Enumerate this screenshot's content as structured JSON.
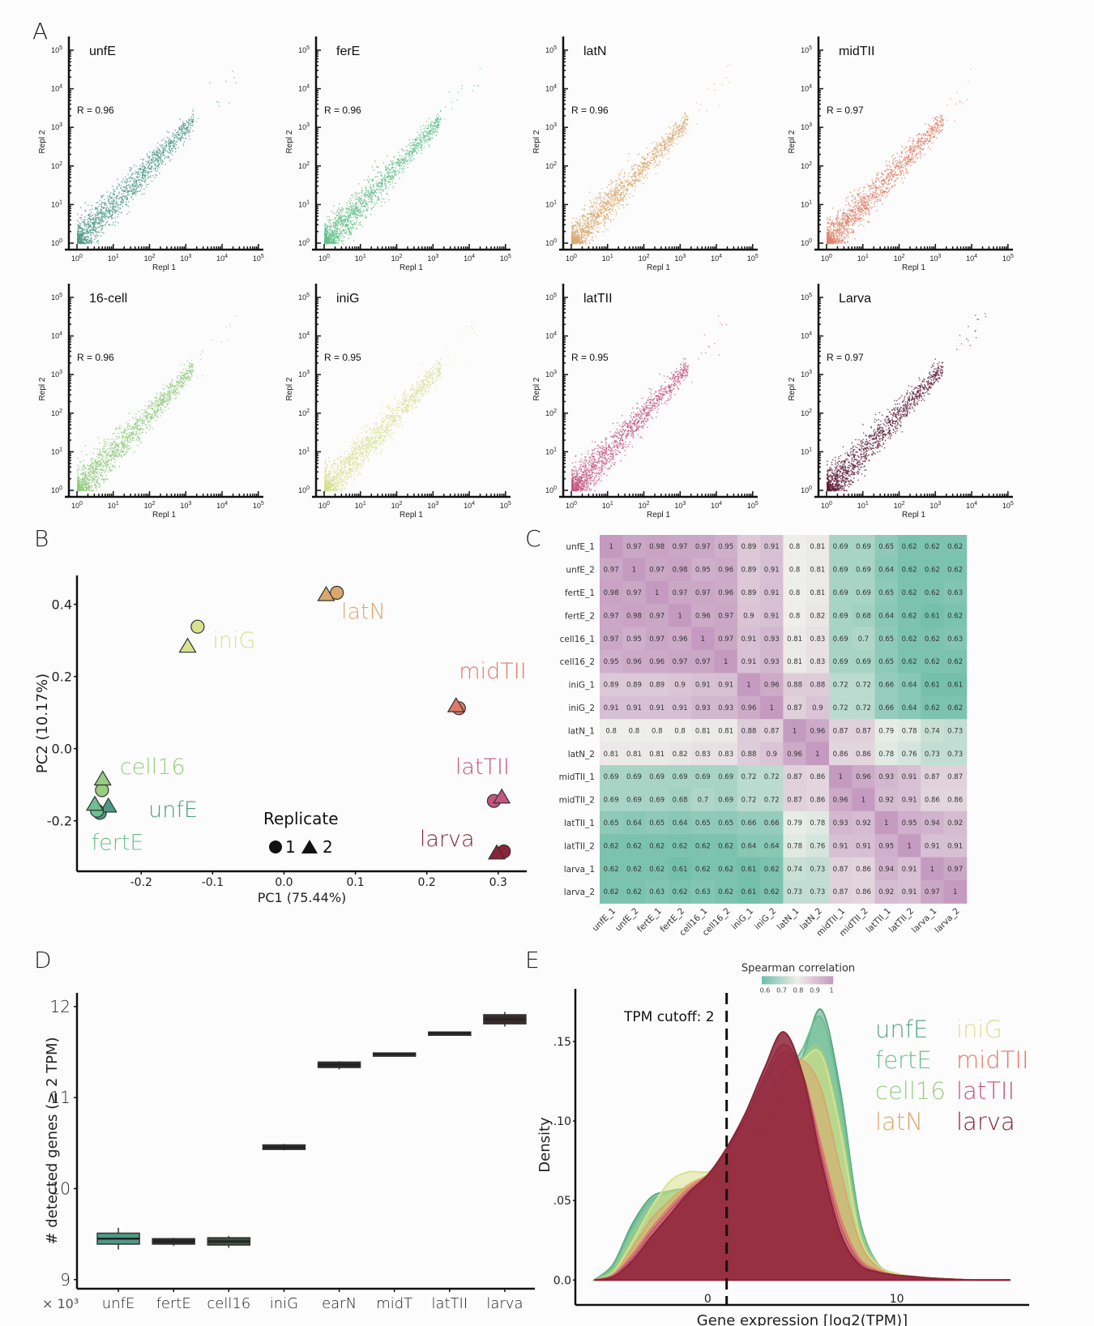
{
  "panels": {
    "A": "A",
    "B": "B",
    "C": "C",
    "D": "D",
    "E": "E"
  },
  "chart_data": [
    {
      "id": "A",
      "type": "scatter",
      "xlabel": "Repl 1",
      "ylabel": "Repl 2",
      "scale": "log10",
      "xlim": [
        1,
        100000
      ],
      "ylim": [
        1,
        100000
      ],
      "tick_labels": [
        "10^0",
        "10^1",
        "10^2",
        "10^3",
        "10^4",
        "10^5"
      ],
      "subplots": [
        {
          "name": "unfE",
          "r_label": "R = 0.96",
          "color": "#4e9a84"
        },
        {
          "name": "ferE",
          "r_label": "R = 0.96",
          "color": "#5fbf8a"
        },
        {
          "name": "latN",
          "r_label": "R = 0.96",
          "color": "#dba76c"
        },
        {
          "name": "midTII",
          "r_label": "R = 0.97",
          "color": "#e08068"
        },
        {
          "name": "16-cell",
          "r_label": "R = 0.96",
          "color": "#8fcb7c"
        },
        {
          "name": "iniG",
          "r_label": "R = 0.95",
          "color": "#d8e08e"
        },
        {
          "name": "latTII",
          "r_label": "R = 0.95",
          "color": "#c4557e"
        },
        {
          "name": "Larva",
          "r_label": "R = 0.97",
          "color": "#5e1d36"
        }
      ]
    },
    {
      "id": "B",
      "type": "scatter",
      "xlabel": "PC1 (75.44%)",
      "ylabel": "PC2 (10.17%)",
      "xlim": [
        -0.29,
        0.34
      ],
      "ylim": [
        -0.34,
        0.48
      ],
      "xticks": [
        -0.2,
        -0.1,
        0.0,
        0.1,
        0.2,
        0.3
      ],
      "xtick_labels": [
        "-0.2",
        "-0.1",
        "0.0",
        "0.1",
        "0.2",
        "0.3"
      ],
      "yticks": [
        -0.2,
        0.0,
        0.2,
        0.4
      ],
      "ytick_labels": [
        "-0.2",
        "0.0",
        "0.2",
        "0.4"
      ],
      "legend": {
        "title": "Replicate",
        "entries": [
          {
            "shape": "circle",
            "label": "1"
          },
          {
            "shape": "triangle",
            "label": "2"
          }
        ],
        "placement": "bottom-center"
      },
      "series": [
        {
          "name": "unfE",
          "color": "#4e9a84",
          "points": [
            {
              "rep": 1,
              "x": -0.258,
              "y": -0.178
            },
            {
              "rep": 2,
              "x": -0.246,
              "y": -0.16
            }
          ],
          "label_pos": [
            -0.19,
            -0.19
          ]
        },
        {
          "name": "fertE",
          "color": "#6cc08e",
          "points": [
            {
              "rep": 1,
              "x": -0.262,
              "y": -0.172
            },
            {
              "rep": 2,
              "x": -0.265,
              "y": -0.155
            }
          ],
          "label_pos": [
            -0.27,
            -0.28
          ]
        },
        {
          "name": "cell16",
          "color": "#98cc82",
          "points": [
            {
              "rep": 1,
              "x": -0.255,
              "y": -0.115
            },
            {
              "rep": 2,
              "x": -0.254,
              "y": -0.085
            }
          ],
          "label_pos": [
            -0.23,
            -0.07
          ]
        },
        {
          "name": "iniG",
          "color": "#d9e28e",
          "points": [
            {
              "rep": 1,
              "x": -0.121,
              "y": 0.338
            },
            {
              "rep": 2,
              "x": -0.135,
              "y": 0.283
            }
          ],
          "label_pos": [
            -0.1,
            0.28
          ]
        },
        {
          "name": "latN",
          "color": "#dba76c",
          "points": [
            {
              "rep": 1,
              "x": 0.074,
              "y": 0.432
            },
            {
              "rep": 2,
              "x": 0.059,
              "y": 0.426
            }
          ],
          "label_pos": [
            0.08,
            0.36
          ]
        },
        {
          "name": "midTII",
          "color": "#e07a66",
          "points": [
            {
              "rep": 1,
              "x": 0.245,
              "y": 0.112
            },
            {
              "rep": 2,
              "x": 0.241,
              "y": 0.118
            }
          ],
          "label_pos": [
            0.245,
            0.195
          ]
        },
        {
          "name": "latTII",
          "color": "#c4557e",
          "points": [
            {
              "rep": 1,
              "x": 0.294,
              "y": -0.145
            },
            {
              "rep": 2,
              "x": 0.305,
              "y": -0.135
            }
          ],
          "label_pos": [
            0.24,
            -0.07
          ]
        },
        {
          "name": "larva",
          "color": "#8c2438",
          "points": [
            {
              "rep": 1,
              "x": 0.308,
              "y": -0.285
            },
            {
              "rep": 2,
              "x": 0.298,
              "y": -0.29
            }
          ],
          "label_pos": [
            0.19,
            -0.27
          ]
        }
      ]
    },
    {
      "id": "C",
      "type": "heatmap",
      "title": "",
      "legend_title": "Spearman  correlation",
      "legend_ticks": [
        "0.6",
        "0.7",
        "0.8",
        "0.9",
        "1"
      ],
      "color_low": "#6fbea8",
      "color_mid": "#eeeeea",
      "color_high": "#c59ac0",
      "range": [
        0.6,
        1.0
      ],
      "labels": [
        "unfE_1",
        "unfE_2",
        "fertE_1",
        "fertE_2",
        "cell16_1",
        "cell16_2",
        "iniG_1",
        "iniG_2",
        "latN_1",
        "latN_2",
        "midTII_1",
        "midTII_2",
        "latTII_1",
        "latTII_2",
        "larva_1",
        "larva_2"
      ],
      "matrix": [
        [
          1,
          0.97,
          0.98,
          0.97,
          0.97,
          0.95,
          0.89,
          0.91,
          0.8,
          0.81,
          0.69,
          0.69,
          0.65,
          0.62,
          0.62,
          0.62
        ],
        [
          0.97,
          1,
          0.97,
          0.98,
          0.95,
          0.96,
          0.89,
          0.91,
          0.8,
          0.81,
          0.69,
          0.69,
          0.64,
          0.62,
          0.62,
          0.62
        ],
        [
          0.98,
          0.97,
          1,
          0.97,
          0.97,
          0.96,
          0.89,
          0.91,
          0.8,
          0.81,
          0.69,
          0.69,
          0.65,
          0.62,
          0.62,
          0.63
        ],
        [
          0.97,
          0.98,
          0.97,
          1,
          0.96,
          0.97,
          0.9,
          0.91,
          0.8,
          0.82,
          0.69,
          0.68,
          0.64,
          0.62,
          0.61,
          0.62
        ],
        [
          0.97,
          0.95,
          0.97,
          0.96,
          1,
          0.97,
          0.91,
          0.93,
          0.81,
          0.83,
          0.69,
          0.7,
          0.65,
          0.62,
          0.62,
          0.63
        ],
        [
          0.95,
          0.96,
          0.96,
          0.97,
          0.97,
          1,
          0.91,
          0.93,
          0.81,
          0.83,
          0.69,
          0.69,
          0.65,
          0.62,
          0.62,
          0.62
        ],
        [
          0.89,
          0.89,
          0.89,
          0.9,
          0.91,
          0.91,
          1,
          0.96,
          0.88,
          0.88,
          0.72,
          0.72,
          0.66,
          0.64,
          0.61,
          0.61
        ],
        [
          0.91,
          0.91,
          0.91,
          0.91,
          0.93,
          0.93,
          0.96,
          1,
          0.87,
          0.9,
          0.72,
          0.72,
          0.66,
          0.64,
          0.62,
          0.62
        ],
        [
          0.8,
          0.8,
          0.8,
          0.8,
          0.81,
          0.81,
          0.88,
          0.87,
          1,
          0.96,
          0.87,
          0.87,
          0.79,
          0.78,
          0.74,
          0.73
        ],
        [
          0.81,
          0.81,
          0.81,
          0.82,
          0.83,
          0.83,
          0.88,
          0.9,
          0.96,
          1,
          0.86,
          0.86,
          0.78,
          0.76,
          0.73,
          0.73
        ],
        [
          0.69,
          0.69,
          0.69,
          0.69,
          0.69,
          0.69,
          0.72,
          0.72,
          0.87,
          0.86,
          1,
          0.96,
          0.93,
          0.91,
          0.87,
          0.87
        ],
        [
          0.69,
          0.69,
          0.69,
          0.68,
          0.7,
          0.69,
          0.72,
          0.72,
          0.87,
          0.86,
          0.96,
          1,
          0.92,
          0.91,
          0.86,
          0.86
        ],
        [
          0.65,
          0.64,
          0.65,
          0.64,
          0.65,
          0.65,
          0.66,
          0.66,
          0.79,
          0.78,
          0.93,
          0.92,
          1,
          0.95,
          0.94,
          0.92
        ],
        [
          0.62,
          0.62,
          0.62,
          0.62,
          0.62,
          0.62,
          0.64,
          0.64,
          0.78,
          0.76,
          0.91,
          0.91,
          0.95,
          1,
          0.91,
          0.91
        ],
        [
          0.62,
          0.62,
          0.62,
          0.61,
          0.62,
          0.62,
          0.61,
          0.62,
          0.74,
          0.73,
          0.87,
          0.86,
          0.94,
          0.91,
          1,
          0.97
        ],
        [
          0.62,
          0.62,
          0.63,
          0.62,
          0.63,
          0.62,
          0.61,
          0.62,
          0.73,
          0.73,
          0.87,
          0.86,
          0.92,
          0.91,
          0.97,
          1
        ]
      ]
    },
    {
      "id": "D",
      "type": "bar",
      "subtype": "boxplot",
      "ylabel": "# detected genes (≥ 2 TPM)",
      "y_multiplier_label": "× 10³",
      "ylim": [
        8.9,
        12.15
      ],
      "yticks": [
        9,
        10,
        11,
        12
      ],
      "ytick_labels": [
        "9",
        "10",
        "11",
        "12"
      ],
      "categories": [
        "unfE",
        "fertE",
        "cell16",
        "iniG",
        "earN",
        "midT",
        "latTII",
        "larva"
      ],
      "boxes": [
        {
          "median": 9.45,
          "q1": 9.39,
          "q3": 9.51,
          "min": 9.33,
          "max": 9.57,
          "fill": "#4e9a84"
        },
        {
          "median": 9.42,
          "q1": 9.39,
          "q3": 9.45,
          "min": 9.37,
          "max": 9.46,
          "fill": "#2b2b2b"
        },
        {
          "median": 9.42,
          "q1": 9.38,
          "q3": 9.46,
          "min": 9.35,
          "max": 9.48,
          "fill": "#3c4f45"
        },
        {
          "median": 10.45,
          "q1": 10.43,
          "q3": 10.48,
          "min": 10.42,
          "max": 10.49,
          "fill": "#2b2b2b"
        },
        {
          "median": 11.36,
          "q1": 11.33,
          "q3": 11.39,
          "min": 11.31,
          "max": 11.4,
          "fill": "#2b2b2b"
        },
        {
          "median": 11.48,
          "q1": 11.47,
          "q3": 11.49,
          "min": 11.47,
          "max": 11.49,
          "fill": "#2b2b2b"
        },
        {
          "median": 11.71,
          "q1": 11.7,
          "q3": 11.72,
          "min": 11.7,
          "max": 11.72,
          "fill": "#2b2b2b"
        },
        {
          "median": 11.86,
          "q1": 11.81,
          "q3": 11.91,
          "min": 11.78,
          "max": 11.94,
          "fill": "#3a2a2e"
        }
      ]
    },
    {
      "id": "E",
      "type": "area",
      "xlabel": "Gene expression [log2(TPM)]",
      "ylabel": "Density",
      "xlim": [
        -7,
        17
      ],
      "ylim": [
        -0.008,
        0.178
      ],
      "xticks": [
        0,
        10
      ],
      "xtick_labels": [
        "0",
        "10"
      ],
      "yticks": [
        0,
        0.05,
        0.1,
        0.15
      ],
      "ytick_labels": [
        "0.0",
        ".05",
        ".10",
        ".15"
      ],
      "annotation": "TPM cutoff: 2",
      "cutoff_x": 1,
      "x": [
        -6,
        -5,
        -4,
        -3,
        -2,
        -1,
        0,
        1,
        2,
        3,
        4,
        5,
        6,
        7,
        8,
        9,
        10,
        11,
        12,
        14,
        16
      ],
      "series": [
        {
          "name": "unfE",
          "color": "#5aa686",
          "values": [
            0,
            0.01,
            0.035,
            0.052,
            0.056,
            0.058,
            0.062,
            0.07,
            0.08,
            0.095,
            0.12,
            0.14,
            0.17,
            0.12,
            0.04,
            0.01,
            0.004,
            0.002,
            0.001,
            0,
            0
          ]
        },
        {
          "name": "fertE",
          "color": "#6cc08e",
          "values": [
            0,
            0.009,
            0.033,
            0.05,
            0.055,
            0.057,
            0.061,
            0.07,
            0.082,
            0.098,
            0.125,
            0.145,
            0.165,
            0.115,
            0.038,
            0.01,
            0.004,
            0.002,
            0.001,
            0,
            0
          ]
        },
        {
          "name": "cell16",
          "color": "#98cc82",
          "values": [
            0,
            0.007,
            0.028,
            0.046,
            0.054,
            0.058,
            0.062,
            0.072,
            0.085,
            0.1,
            0.125,
            0.14,
            0.145,
            0.1,
            0.035,
            0.01,
            0.004,
            0.002,
            0.001,
            0,
            0
          ]
        },
        {
          "name": "latN",
          "color": "#dba76c",
          "values": [
            0,
            0.004,
            0.02,
            0.038,
            0.05,
            0.06,
            0.066,
            0.075,
            0.09,
            0.11,
            0.13,
            0.138,
            0.12,
            0.07,
            0.025,
            0.008,
            0.003,
            0.002,
            0.001,
            0,
            0
          ]
        },
        {
          "name": "iniG",
          "color": "#d9e28e",
          "values": [
            0,
            0.005,
            0.024,
            0.045,
            0.062,
            0.068,
            0.068,
            0.074,
            0.088,
            0.105,
            0.125,
            0.138,
            0.142,
            0.095,
            0.03,
            0.009,
            0.004,
            0.002,
            0.001,
            0,
            0
          ]
        },
        {
          "name": "midTII",
          "color": "#e07a66",
          "values": [
            0,
            0.003,
            0.016,
            0.032,
            0.046,
            0.058,
            0.066,
            0.08,
            0.1,
            0.125,
            0.143,
            0.13,
            0.085,
            0.04,
            0.014,
            0.006,
            0.003,
            0.002,
            0.001,
            0,
            0
          ]
        },
        {
          "name": "latTII",
          "color": "#c4557e",
          "values": [
            0,
            0.003,
            0.014,
            0.03,
            0.044,
            0.056,
            0.066,
            0.082,
            0.102,
            0.128,
            0.148,
            0.13,
            0.08,
            0.035,
            0.012,
            0.005,
            0.003,
            0.002,
            0.001,
            0,
            0
          ]
        },
        {
          "name": "larva",
          "color": "#8c2438",
          "values": [
            0,
            0.002,
            0.012,
            0.027,
            0.041,
            0.055,
            0.066,
            0.083,
            0.105,
            0.133,
            0.156,
            0.13,
            0.075,
            0.03,
            0.01,
            0.005,
            0.003,
            0.002,
            0.001,
            0,
            0
          ]
        }
      ],
      "legend": {
        "placement": "top-right",
        "columns": [
          [
            "unfE",
            "fertE",
            "cell16",
            "latN"
          ],
          [
            "iniG",
            "midTII",
            "latTII",
            "larva"
          ]
        ]
      }
    }
  ]
}
